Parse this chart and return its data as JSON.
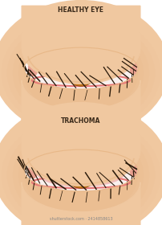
{
  "title1": "HEALTHY EYE",
  "title2": "TRACHOMA",
  "watermark": "shutterstock.com · 2414858613",
  "bg_color": "#ffffff",
  "skin_color": "#f0c8a0",
  "skin_shadow": "#e8b888",
  "sclera_color": "#f8f0ee",
  "iris_color_outer": "#c87820",
  "iris_color_inner": "#a06010",
  "iris_color_center": "#804800",
  "pupil_color": "#0a3040",
  "eyelid_pink": "#e87878",
  "trachoma_color": "#c03030",
  "trachoma_texture": "#d04040",
  "caruncle_color": "#e8a090",
  "lash_color": "#2a1a0a",
  "label_color": "#3a2a1a",
  "watermark_color": "#888888"
}
